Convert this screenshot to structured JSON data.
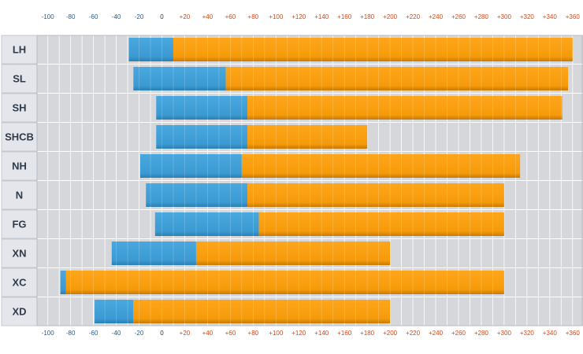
{
  "chart_data": {
    "type": "bar",
    "orientation": "horizontal",
    "stacked": true,
    "xlim": [
      -110,
      365
    ],
    "x_ticks": [
      "-100",
      "-80",
      "-60",
      "-40",
      "-20",
      "0",
      "+20",
      "+40",
      "+60",
      "+80",
      "+100",
      "+120",
      "+140",
      "+160",
      "+180",
      "+200",
      "+220",
      "+240",
      "+260",
      "+280",
      "+300",
      "+320",
      "+340",
      "+360"
    ],
    "x_tick_values": [
      -100,
      -80,
      -60,
      -40,
      -20,
      0,
      20,
      40,
      60,
      80,
      100,
      120,
      140,
      160,
      180,
      200,
      220,
      240,
      260,
      280,
      300,
      320,
      340,
      360
    ],
    "categories": [
      "LH",
      "SL",
      "SH",
      "SHCB",
      "NH",
      "N",
      "FG",
      "XN",
      "XC",
      "XD"
    ],
    "series": [
      {
        "color": "#3b9ad2",
        "ranges": [
          [
            -29,
            10
          ],
          [
            -25,
            56
          ],
          [
            -5,
            75
          ],
          [
            -5,
            75
          ],
          [
            -19,
            70
          ],
          [
            -14,
            75
          ],
          [
            -6,
            85
          ],
          [
            -44,
            30
          ],
          [
            -89,
            -84
          ],
          [
            -59,
            -25
          ]
        ]
      },
      {
        "color": "#f59b0a",
        "ranges": [
          [
            10,
            360
          ],
          [
            56,
            356
          ],
          [
            75,
            351
          ],
          [
            75,
            180
          ],
          [
            70,
            314
          ],
          [
            75,
            300
          ],
          [
            85,
            300
          ],
          [
            30,
            200
          ],
          [
            -84,
            300
          ],
          [
            -25,
            200
          ]
        ]
      }
    ],
    "grid": true,
    "legend": "none",
    "colors": {
      "background": "#d6d7db",
      "label_cell": "#e4e6ec",
      "grid": "#ffffff",
      "neg_tick": "#2a5d8c",
      "pos_tick": "#d04a1a"
    }
  }
}
